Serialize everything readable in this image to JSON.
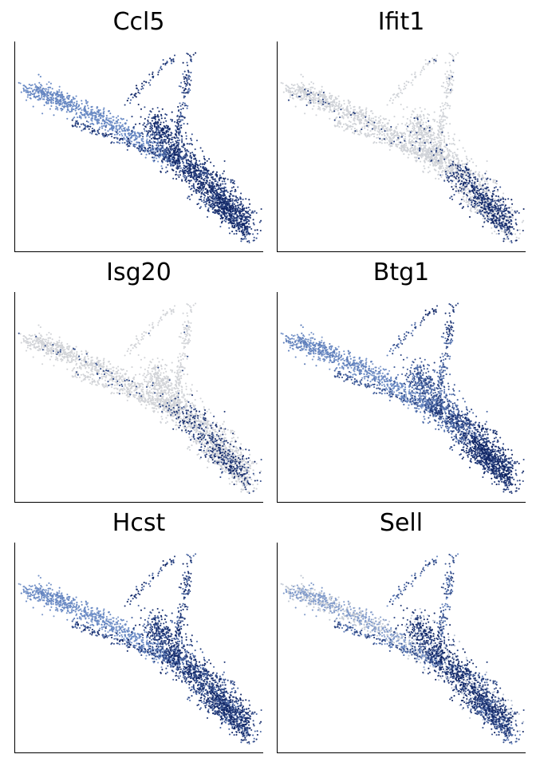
{
  "chart_data": [
    {
      "type": "scatter",
      "title": "Ccl5",
      "expression_profile": "high along main branch, mid on upper-left arm",
      "colors": {
        "low": "#d9d9d9",
        "mid": "#6b8cc7",
        "high": "#0b1f5e"
      }
    },
    {
      "type": "scatter",
      "title": "Ifit1",
      "expression_profile": "low overall, high in lower-middle region",
      "colors": {
        "low": "#d9d9d9",
        "mid": "#6b8cc7",
        "high": "#0b1f5e"
      }
    },
    {
      "type": "scatter",
      "title": "Isg20",
      "expression_profile": "low overall, sparse high in middle and lower region",
      "colors": {
        "low": "#d9d9d9",
        "mid": "#6b8cc7",
        "high": "#0b1f5e"
      }
    },
    {
      "type": "scatter",
      "title": "Btg1",
      "expression_profile": "mid-high throughout, highest at lower end",
      "colors": {
        "low": "#d9d9d9",
        "mid": "#6b8cc7",
        "high": "#0b1f5e"
      }
    },
    {
      "type": "scatter",
      "title": "Hcst",
      "expression_profile": "mid-high throughout, highest along main branch",
      "colors": {
        "low": "#d9d9d9",
        "mid": "#6b8cc7",
        "high": "#0b1f5e"
      }
    },
    {
      "type": "scatter",
      "title": "Sell",
      "expression_profile": "mixed, high along central main branch",
      "colors": {
        "low": "#d9d9d9",
        "mid": "#6b8cc7",
        "high": "#0b1f5e"
      }
    }
  ]
}
